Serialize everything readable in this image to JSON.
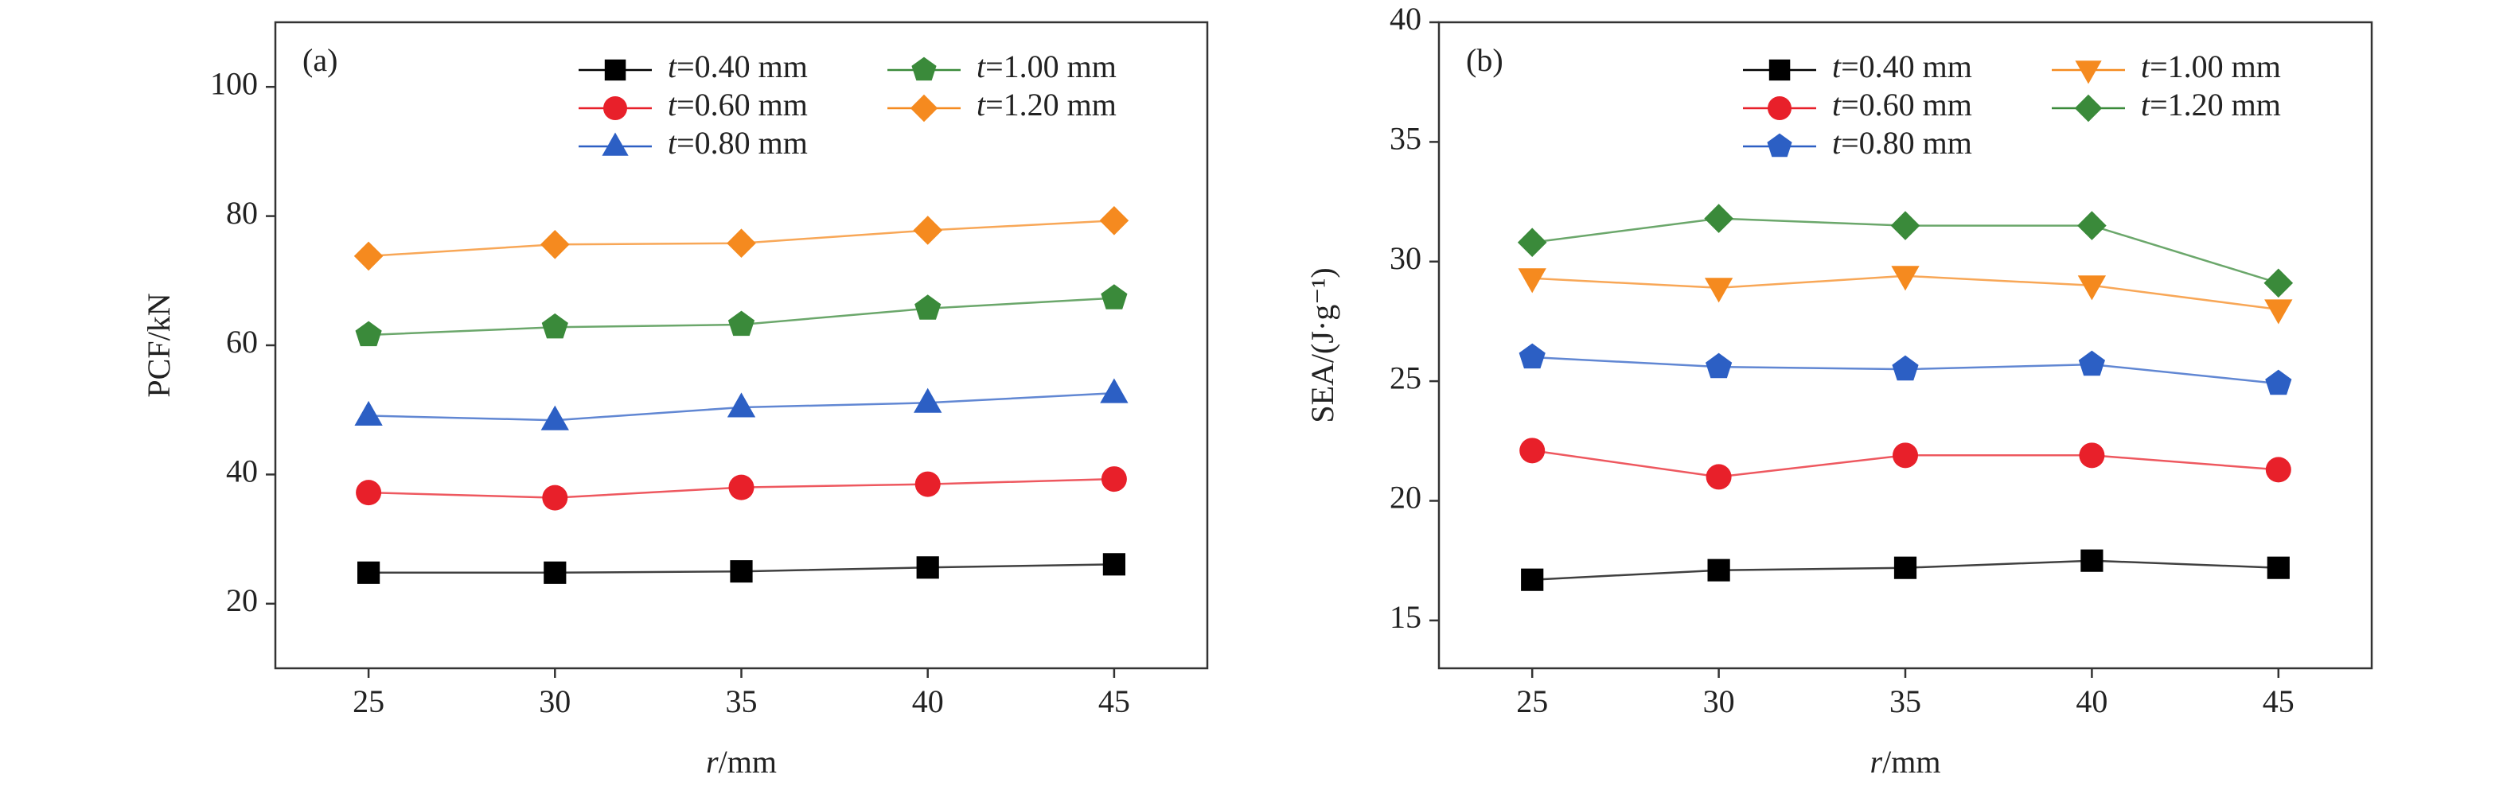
{
  "chart_data": [
    {
      "type": "line",
      "label": "(a)",
      "x_label": "r/mm",
      "y_label": "PCF/kN",
      "x": [
        25,
        30,
        35,
        40,
        45
      ],
      "xlim": [
        22.5,
        47.5
      ],
      "xticks": [
        25,
        30,
        35,
        40,
        45
      ],
      "ylim": [
        10,
        110
      ],
      "yticks": [
        20,
        40,
        60,
        80,
        100
      ],
      "series": [
        {
          "name": "t=0.40 mm",
          "color": "#000000",
          "marker": "square",
          "values": [
            24.8,
            24.8,
            25.0,
            25.6,
            26.1
          ]
        },
        {
          "name": "t=0.60 mm",
          "color": "#e8202a",
          "marker": "circle",
          "values": [
            37.2,
            36.4,
            38.0,
            38.5,
            39.3
          ]
        },
        {
          "name": "t=0.80 mm",
          "color": "#2c5fc4",
          "marker": "triangle",
          "values": [
            49.1,
            48.4,
            50.4,
            51.1,
            52.6
          ]
        },
        {
          "name": "t=1.00 mm",
          "color": "#3a8a3a",
          "marker": "pentagon",
          "values": [
            61.6,
            62.8,
            63.2,
            65.7,
            67.3
          ]
        },
        {
          "name": "t=1.20 mm",
          "color": "#f58a1f",
          "marker": "diamond",
          "values": [
            73.8,
            75.6,
            75.8,
            77.8,
            79.3
          ]
        }
      ]
    },
    {
      "type": "line",
      "label": "(b)",
      "x_label": "r/mm",
      "y_label": "SEA/(J·g⁻¹)",
      "x": [
        25,
        30,
        35,
        40,
        45
      ],
      "xlim": [
        22.5,
        47.5
      ],
      "xticks": [
        25,
        30,
        35,
        40,
        45
      ],
      "ylim": [
        13,
        40
      ],
      "yticks": [
        15,
        20,
        25,
        30,
        35,
        40
      ],
      "series": [
        {
          "name": "t=0.40 mm",
          "color": "#000000",
          "marker": "square",
          "values": [
            16.7,
            17.1,
            17.2,
            17.5,
            17.2
          ]
        },
        {
          "name": "t=0.60 mm",
          "color": "#e8202a",
          "marker": "circle",
          "values": [
            22.1,
            21.0,
            21.9,
            21.9,
            21.3
          ]
        },
        {
          "name": "t=0.80 mm",
          "color": "#2c5fc4",
          "marker": "pentagon",
          "values": [
            26.0,
            25.6,
            25.5,
            25.7,
            24.9
          ]
        },
        {
          "name": "t=1.00 mm",
          "color": "#f58a1f",
          "marker": "triangle-down",
          "values": [
            29.3,
            28.9,
            29.4,
            29.0,
            28.0
          ]
        },
        {
          "name": "t=1.20 mm",
          "color": "#3a8a3a",
          "marker": "diamond",
          "values": [
            30.8,
            31.8,
            31.5,
            31.5,
            29.1
          ]
        }
      ]
    }
  ]
}
